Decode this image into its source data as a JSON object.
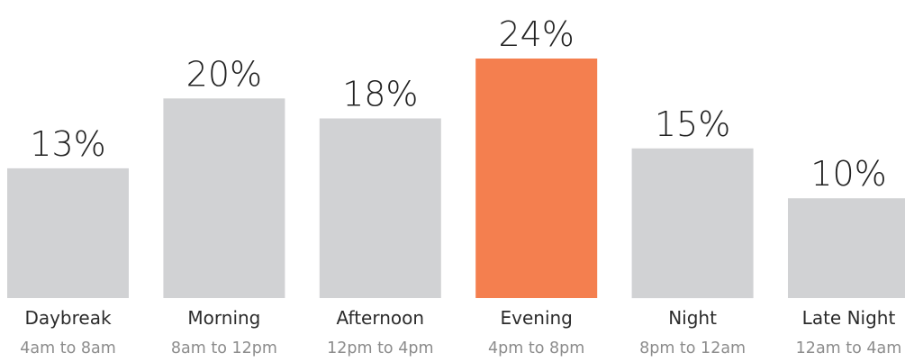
{
  "chart_data": {
    "type": "bar",
    "categories": [
      "Daybreak",
      "Morning",
      "Afternoon",
      "Evening",
      "Night",
      "Late Night"
    ],
    "time_ranges": [
      "4am to 8am",
      "8am to 12pm",
      "12pm to 4pm",
      "4pm to 8pm",
      "8pm to 12am",
      "12am to 4am"
    ],
    "values": [
      13,
      20,
      18,
      24,
      15,
      10
    ],
    "value_labels": [
      "13%",
      "20%",
      "18%",
      "24%",
      "15%",
      "10%"
    ],
    "highlight_index": 3,
    "colors": {
      "bar": "#d1d2d4",
      "highlight": "#f47f4f"
    },
    "title": "",
    "xlabel": "",
    "ylabel": "",
    "ylim": [
      0,
      24
    ],
    "grid": false,
    "legend": "none"
  }
}
